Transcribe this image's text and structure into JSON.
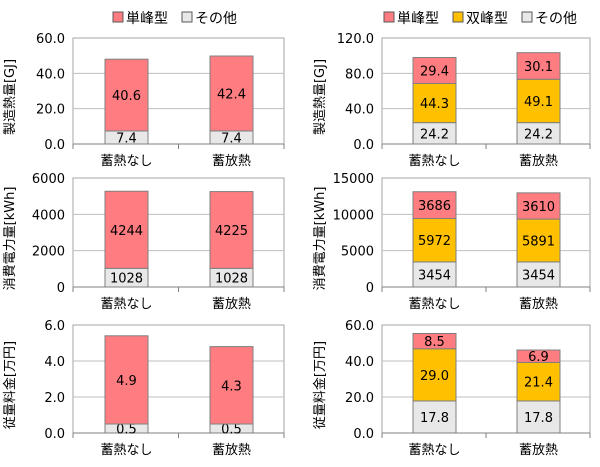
{
  "colors": {
    "単峰型": "#FF7C80",
    "双峰型": "#FFC000",
    "その他": "#E8E8E8"
  },
  "chart_data": [
    {
      "type": "bar",
      "stacked": true,
      "position": "left-top",
      "ylabel": "製造熱量[GJ]",
      "ylim": [
        0,
        60
      ],
      "yticks": [
        "0.0",
        "20.0",
        "40.0",
        "60.0"
      ],
      "grid": true,
      "legend": "top",
      "categories": [
        "蓄熱なし",
        "蓄放熱"
      ],
      "series": [
        {
          "name": "その他",
          "values": [
            7.4,
            7.4
          ],
          "labels": [
            "7.4",
            "7.4"
          ]
        },
        {
          "name": "単峰型",
          "values": [
            40.6,
            42.4
          ],
          "labels": [
            "40.6",
            "42.4"
          ]
        }
      ]
    },
    {
      "type": "bar",
      "stacked": true,
      "position": "left-middle",
      "ylabel": "消費電力量[kWh]",
      "ylim": [
        0,
        6000
      ],
      "yticks": [
        "0",
        "2000",
        "4000",
        "6000"
      ],
      "grid": true,
      "categories": [
        "蓄熱なし",
        "蓄放熱"
      ],
      "series": [
        {
          "name": "その他",
          "values": [
            1028,
            1028
          ],
          "labels": [
            "1028",
            "1028"
          ]
        },
        {
          "name": "単峰型",
          "values": [
            4244,
            4225
          ],
          "labels": [
            "4244",
            "4225"
          ]
        }
      ]
    },
    {
      "type": "bar",
      "stacked": true,
      "position": "left-bottom",
      "ylabel": "従量料金[万円]",
      "ylim": [
        0,
        6
      ],
      "yticks": [
        "0.0",
        "2.0",
        "4.0",
        "6.0"
      ],
      "grid": true,
      "categories": [
        "蓄熱なし",
        "蓄放熱"
      ],
      "series": [
        {
          "name": "その他",
          "values": [
            0.5,
            0.5
          ],
          "labels": [
            "0.5",
            "0.5"
          ]
        },
        {
          "name": "単峰型",
          "values": [
            4.9,
            4.3
          ],
          "labels": [
            "4.9",
            "4.3"
          ]
        }
      ]
    },
    {
      "type": "bar",
      "stacked": true,
      "position": "right-top",
      "ylabel": "製造熱量[GJ]",
      "ylim": [
        0,
        120
      ],
      "yticks": [
        "0.0",
        "40.0",
        "80.0",
        "120.0"
      ],
      "grid": true,
      "legend": "top",
      "categories": [
        "蓄熱なし",
        "蓄放熱"
      ],
      "series": [
        {
          "name": "その他",
          "values": [
            24.2,
            24.2
          ],
          "labels": [
            "24.2",
            "24.2"
          ]
        },
        {
          "name": "双峰型",
          "values": [
            44.3,
            49.1
          ],
          "labels": [
            "44.3",
            "49.1"
          ]
        },
        {
          "name": "単峰型",
          "values": [
            29.4,
            30.1
          ],
          "labels": [
            "29.4",
            "30.1"
          ]
        }
      ]
    },
    {
      "type": "bar",
      "stacked": true,
      "position": "right-middle",
      "ylabel": "消費電力量[kWh]",
      "ylim": [
        0,
        15000
      ],
      "yticks": [
        "0",
        "5000",
        "10000",
        "15000"
      ],
      "grid": true,
      "categories": [
        "蓄熱なし",
        "蓄放熱"
      ],
      "series": [
        {
          "name": "その他",
          "values": [
            3454,
            3454
          ],
          "labels": [
            "3454",
            "3454"
          ]
        },
        {
          "name": "双峰型",
          "values": [
            5972,
            5891
          ],
          "labels": [
            "5972",
            "5891"
          ]
        },
        {
          "name": "単峰型",
          "values": [
            3686,
            3610
          ],
          "labels": [
            "3686",
            "3610"
          ]
        }
      ]
    },
    {
      "type": "bar",
      "stacked": true,
      "position": "right-bottom",
      "ylabel": "従量料金[万円]",
      "ylim": [
        0,
        60
      ],
      "yticks": [
        "0.0",
        "20.0",
        "40.0",
        "60.0"
      ],
      "grid": true,
      "categories": [
        "蓄熱なし",
        "蓄放熱"
      ],
      "series": [
        {
          "name": "その他",
          "values": [
            17.8,
            17.8
          ],
          "labels": [
            "17.8",
            "17.8"
          ]
        },
        {
          "name": "双峰型",
          "values": [
            29.0,
            21.4
          ],
          "labels": [
            "29.0",
            "21.4"
          ]
        },
        {
          "name": "単峰型",
          "values": [
            8.5,
            6.9
          ],
          "labels": [
            "8.5",
            "6.9"
          ]
        }
      ]
    }
  ],
  "legends": {
    "left": [
      "単峰型",
      "その他"
    ],
    "right": [
      "単峰型",
      "双峰型",
      "その他"
    ]
  }
}
